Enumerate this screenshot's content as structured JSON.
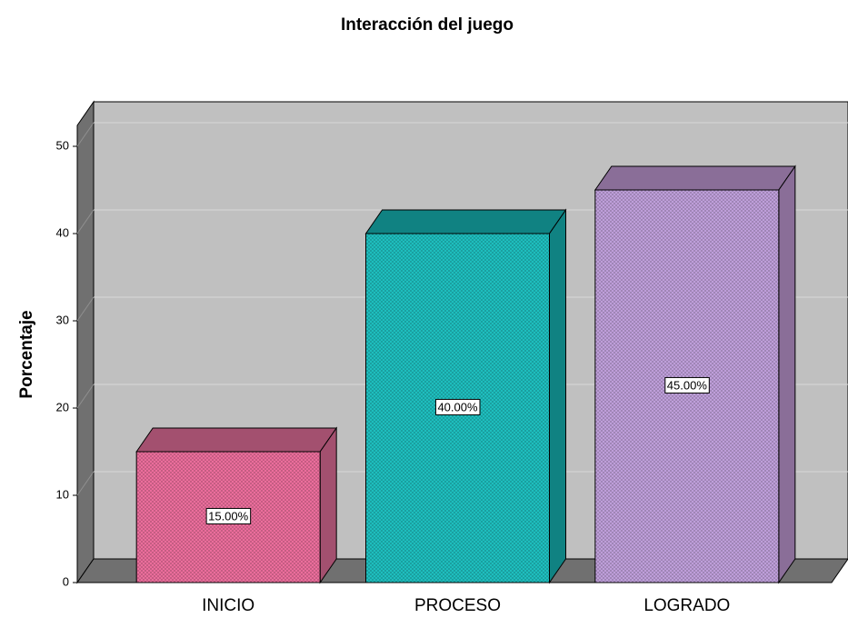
{
  "chart_data": {
    "type": "bar3d",
    "title": "Interacción del juego",
    "y_label": "Porcentaje",
    "categories": [
      "INICIO",
      "PROCESO",
      "LOGRADO"
    ],
    "values": [
      15,
      40,
      45
    ],
    "value_labels": [
      "15.00%",
      "40.00%",
      "45.00%"
    ],
    "colors": [
      "#f0709f",
      "#1fc2c2",
      "#c2a2de"
    ],
    "top_colors": [
      "#a3506f",
      "#108282",
      "#8a6e98"
    ],
    "ylim": [
      0,
      55
    ],
    "yticks": [
      0,
      10,
      20,
      30,
      40,
      50
    ],
    "grid": true
  }
}
